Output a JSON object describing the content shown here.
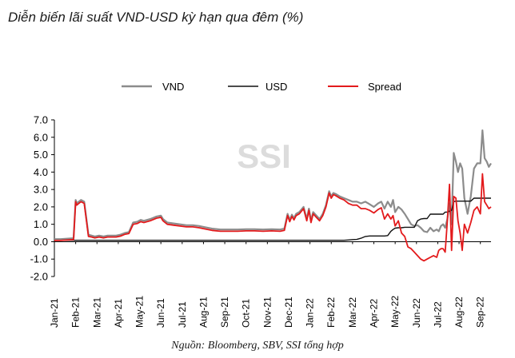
{
  "chart_data": {
    "type": "line",
    "title": "Diễn biến lãi suất VND-USD kỳ hạn qua đêm (%)",
    "source": "Nguồn: Bloomberg, SBV, SSI tổng hợp",
    "watermark": "SSI",
    "xlabel": "",
    "ylabel": "",
    "ylim": [
      -2.0,
      7.0
    ],
    "yticks": [
      "7.0",
      "6.0",
      "5.0",
      "4.0",
      "3.0",
      "2.0",
      "1.0",
      "0.0",
      "-1.0",
      "-2.0"
    ],
    "categories": [
      "Jan-21",
      "Feb-21",
      "Mar-21",
      "Apr-21",
      "May-21",
      "Jun-21",
      "Jul-21",
      "Aug-21",
      "Sep-21",
      "Oct-21",
      "Nov-21",
      "Dec-21",
      "Jan-22",
      "Feb-22",
      "Mar-22",
      "Apr-22",
      "May-22",
      "Jun-22",
      "Jul-22",
      "Aug-22",
      "Sep-22"
    ],
    "x": [
      0,
      0.3,
      0.9,
      1.0,
      1.05,
      1.15,
      1.25,
      1.4,
      1.6,
      1.75,
      1.9,
      2.1,
      2.3,
      2.5,
      2.7,
      2.9,
      3.1,
      3.3,
      3.5,
      3.7,
      3.9,
      4.05,
      4.2,
      4.5,
      4.8,
      5.0,
      5.1,
      5.3,
      5.6,
      5.9,
      6.2,
      6.5,
      6.8,
      7.0,
      7.4,
      7.8,
      8.2,
      8.6,
      9.0,
      9.4,
      9.8,
      10.2,
      10.6,
      10.8,
      10.95,
      11.05,
      11.15,
      11.25,
      11.35,
      11.5,
      11.7,
      11.85,
      11.95,
      12.05,
      12.15,
      12.3,
      12.45,
      12.6,
      12.75,
      12.9,
      13.0,
      13.1,
      13.2,
      13.4,
      13.6,
      13.8,
      14.0,
      14.2,
      14.4,
      14.6,
      14.8,
      15.0,
      15.2,
      15.35,
      15.5,
      15.65,
      15.8,
      15.9,
      16.0,
      16.15,
      16.3,
      16.45,
      16.6,
      16.75,
      16.9,
      17.05,
      17.2,
      17.35,
      17.5,
      17.65,
      17.8,
      17.95,
      18.05,
      18.15,
      18.25,
      18.35,
      18.45,
      18.55,
      18.65,
      18.75,
      18.85,
      18.95,
      19.05,
      19.15,
      19.25,
      19.4,
      19.55,
      19.7,
      19.85,
      20.0,
      20.1,
      20.2,
      20.3,
      20.4,
      20.5
    ],
    "series": [
      {
        "name": "VND",
        "color": "#8c8c8c",
        "values": [
          0.15,
          0.15,
          0.2,
          2.4,
          2.2,
          2.3,
          2.4,
          2.3,
          0.4,
          0.35,
          0.3,
          0.35,
          0.3,
          0.35,
          0.35,
          0.35,
          0.4,
          0.5,
          0.55,
          1.1,
          1.15,
          1.25,
          1.2,
          1.3,
          1.45,
          1.5,
          1.3,
          1.1,
          1.05,
          1.0,
          0.95,
          0.95,
          0.9,
          0.85,
          0.75,
          0.7,
          0.7,
          0.7,
          0.72,
          0.72,
          0.7,
          0.72,
          0.7,
          0.75,
          1.6,
          1.25,
          1.55,
          1.35,
          1.6,
          1.7,
          2.0,
          1.3,
          1.9,
          1.2,
          1.7,
          1.5,
          1.3,
          1.6,
          2.1,
          2.9,
          2.6,
          2.8,
          2.75,
          2.6,
          2.5,
          2.4,
          2.3,
          2.3,
          2.2,
          2.3,
          2.15,
          2.0,
          2.2,
          2.3,
          1.9,
          2.3,
          2.0,
          2.4,
          1.7,
          2.0,
          1.85,
          1.6,
          1.3,
          1.0,
          0.9,
          0.95,
          0.8,
          0.6,
          0.55,
          0.8,
          0.6,
          0.7,
          0.6,
          0.9,
          1.0,
          0.8,
          1.3,
          2.2,
          1.0,
          5.1,
          4.6,
          4.0,
          4.5,
          4.2,
          2.5,
          1.6,
          2.6,
          4.2,
          4.5,
          4.5,
          6.4,
          4.8,
          4.6,
          4.3,
          4.5
        ]
      },
      {
        "name": "USD",
        "color": "#111111",
        "values": [
          0.08,
          0.08,
          0.08,
          0.08,
          0.08,
          0.08,
          0.08,
          0.08,
          0.08,
          0.08,
          0.08,
          0.08,
          0.08,
          0.08,
          0.08,
          0.08,
          0.08,
          0.08,
          0.08,
          0.08,
          0.08,
          0.08,
          0.08,
          0.08,
          0.08,
          0.08,
          0.08,
          0.08,
          0.08,
          0.08,
          0.08,
          0.08,
          0.08,
          0.08,
          0.08,
          0.08,
          0.08,
          0.08,
          0.08,
          0.08,
          0.08,
          0.08,
          0.08,
          0.08,
          0.08,
          0.08,
          0.08,
          0.08,
          0.08,
          0.08,
          0.08,
          0.08,
          0.08,
          0.08,
          0.08,
          0.08,
          0.08,
          0.08,
          0.08,
          0.08,
          0.08,
          0.08,
          0.08,
          0.08,
          0.08,
          0.1,
          0.12,
          0.13,
          0.2,
          0.3,
          0.33,
          0.33,
          0.33,
          0.33,
          0.33,
          0.35,
          0.6,
          0.7,
          0.78,
          0.8,
          0.8,
          0.83,
          0.83,
          0.83,
          0.83,
          1.2,
          1.3,
          1.33,
          1.33,
          1.58,
          1.58,
          1.58,
          1.58,
          1.58,
          1.58,
          1.7,
          1.7,
          1.75,
          1.8,
          2.3,
          2.33,
          2.33,
          2.33,
          2.33,
          2.33,
          2.33,
          2.33,
          2.5,
          2.5,
          2.5,
          2.5,
          2.5,
          2.5,
          2.5,
          2.5
        ]
      },
      {
        "name": "Spread",
        "color": "#e31a1c",
        "values": [
          0.07,
          0.07,
          0.12,
          2.3,
          2.1,
          2.2,
          2.3,
          2.2,
          0.3,
          0.27,
          0.22,
          0.27,
          0.22,
          0.27,
          0.27,
          0.27,
          0.32,
          0.42,
          0.47,
          1.0,
          1.05,
          1.15,
          1.1,
          1.2,
          1.35,
          1.4,
          1.2,
          1.0,
          0.95,
          0.9,
          0.85,
          0.85,
          0.8,
          0.75,
          0.65,
          0.6,
          0.6,
          0.6,
          0.62,
          0.62,
          0.6,
          0.62,
          0.6,
          0.65,
          1.5,
          1.15,
          1.45,
          1.25,
          1.5,
          1.6,
          1.9,
          1.2,
          1.8,
          1.1,
          1.6,
          1.4,
          1.2,
          1.5,
          2.0,
          2.8,
          2.5,
          2.7,
          2.65,
          2.5,
          2.4,
          2.2,
          2.1,
          2.1,
          1.9,
          1.9,
          1.8,
          1.65,
          1.85,
          1.95,
          1.3,
          1.6,
          1.3,
          1.5,
          0.9,
          1.2,
          0.5,
          0.3,
          -0.3,
          -0.4,
          -0.6,
          -0.8,
          -1.0,
          -1.1,
          -1.0,
          -0.9,
          -0.8,
          -0.9,
          -0.5,
          -0.4,
          -0.4,
          -0.6,
          1.2,
          3.3,
          -0.5,
          2.6,
          2.5,
          1.2,
          0.5,
          -0.5,
          1.0,
          0.5,
          1.1,
          1.8,
          2.0,
          1.6,
          3.9,
          2.3,
          2.1,
          1.9,
          2.0
        ]
      }
    ]
  }
}
